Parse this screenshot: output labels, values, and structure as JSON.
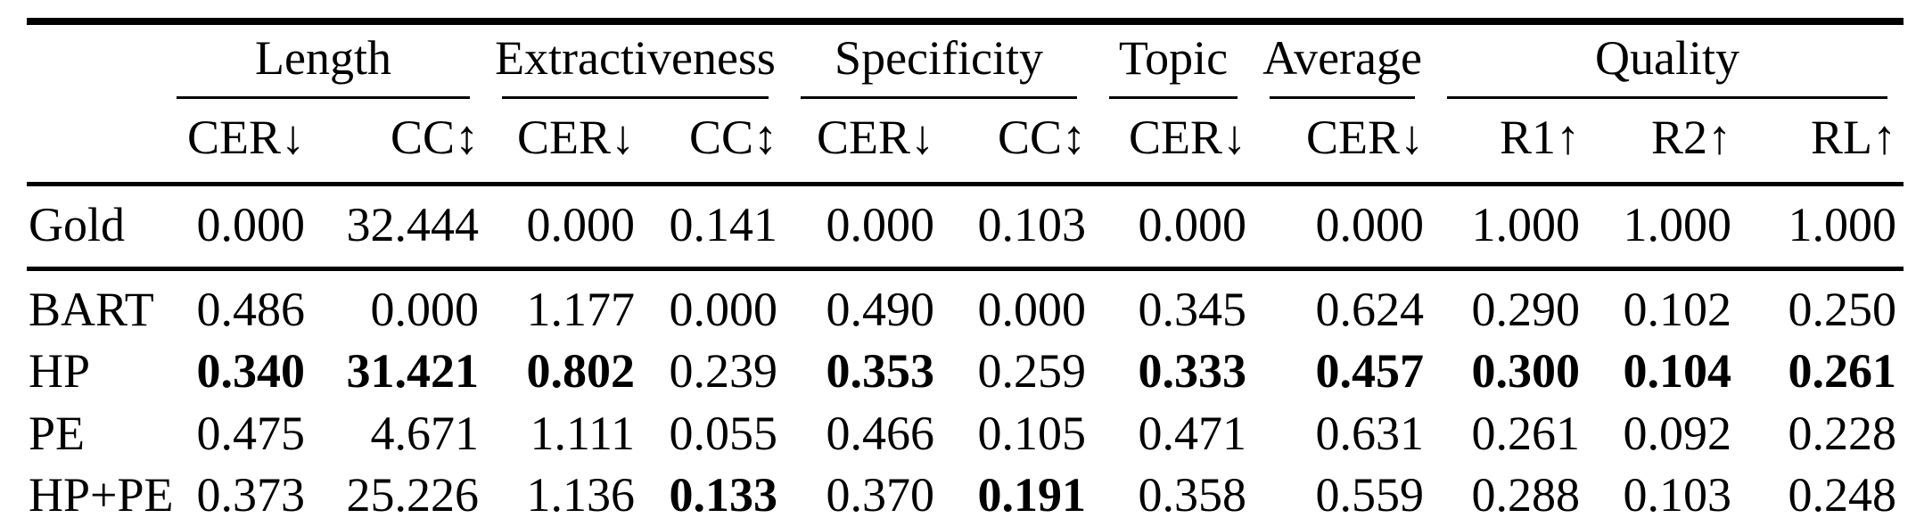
{
  "table": {
    "groups": [
      {
        "label": "Length",
        "cols": 2
      },
      {
        "label": "Extractiveness",
        "cols": 2
      },
      {
        "label": "Specificity",
        "cols": 2
      },
      {
        "label": "Topic",
        "cols": 1
      },
      {
        "label": "Average",
        "cols": 1
      },
      {
        "label": "Quality",
        "cols": 3
      }
    ],
    "subheaders": [
      "CER↓",
      "CC↕",
      "CER↓",
      "CC↕",
      "CER↓",
      "CC↕",
      "CER↓",
      "CER↓",
      "R1↑",
      "R2↑",
      "RL↑"
    ],
    "sections": [
      {
        "rows": [
          {
            "label": "Gold",
            "values": [
              "0.000",
              "32.444",
              "0.000",
              "0.141",
              "0.000",
              "0.103",
              "0.000",
              "0.000",
              "1.000",
              "1.000",
              "1.000"
            ],
            "bold": [
              false,
              false,
              false,
              false,
              false,
              false,
              false,
              false,
              false,
              false,
              false
            ]
          }
        ]
      },
      {
        "rows": [
          {
            "label": "BART",
            "values": [
              "0.486",
              "0.000",
              "1.177",
              "0.000",
              "0.490",
              "0.000",
              "0.345",
              "0.624",
              "0.290",
              "0.102",
              "0.250"
            ],
            "bold": [
              false,
              false,
              false,
              false,
              false,
              false,
              false,
              false,
              false,
              false,
              false
            ]
          },
          {
            "label": "HP",
            "values": [
              "0.340",
              "31.421",
              "0.802",
              "0.239",
              "0.353",
              "0.259",
              "0.333",
              "0.457",
              "0.300",
              "0.104",
              "0.261"
            ],
            "bold": [
              true,
              true,
              true,
              false,
              true,
              false,
              true,
              true,
              true,
              true,
              true
            ]
          },
          {
            "label": "PE",
            "values": [
              "0.475",
              "4.671",
              "1.111",
              "0.055",
              "0.466",
              "0.105",
              "0.471",
              "0.631",
              "0.261",
              "0.092",
              "0.228"
            ],
            "bold": [
              false,
              false,
              false,
              false,
              false,
              false,
              false,
              false,
              false,
              false,
              false
            ]
          },
          {
            "label": "HP+PE",
            "values": [
              "0.373",
              "25.226",
              "1.136",
              "0.133",
              "0.370",
              "0.191",
              "0.358",
              "0.559",
              "0.288",
              "0.103",
              "0.248"
            ],
            "bold": [
              false,
              false,
              false,
              true,
              false,
              true,
              false,
              false,
              false,
              false,
              false
            ]
          }
        ]
      }
    ]
  },
  "chart_data": {
    "type": "table",
    "column_groups": [
      "Length",
      "Length",
      "Extractiveness",
      "Extractiveness",
      "Specificity",
      "Specificity",
      "Topic",
      "Average",
      "Quality",
      "Quality",
      "Quality"
    ],
    "columns": [
      "CER↓",
      "CC↕",
      "CER↓",
      "CC↕",
      "CER↓",
      "CC↕",
      "CER↓",
      "CER↓",
      "R1↑",
      "R2↑",
      "RL↑"
    ],
    "rows": [
      {
        "name": "Gold",
        "values": [
          0.0,
          32.444,
          0.0,
          0.141,
          0.0,
          0.103,
          0.0,
          0.0,
          1.0,
          1.0,
          1.0
        ]
      },
      {
        "name": "BART",
        "values": [
          0.486,
          0.0,
          1.177,
          0.0,
          0.49,
          0.0,
          0.345,
          0.624,
          0.29,
          0.102,
          0.25
        ]
      },
      {
        "name": "HP",
        "values": [
          0.34,
          31.421,
          0.802,
          0.239,
          0.353,
          0.259,
          0.333,
          0.457,
          0.3,
          0.104,
          0.261
        ]
      },
      {
        "name": "PE",
        "values": [
          0.475,
          4.671,
          1.111,
          0.055,
          0.466,
          0.105,
          0.471,
          0.631,
          0.261,
          0.092,
          0.228
        ]
      },
      {
        "name": "HP+PE",
        "values": [
          0.373,
          25.226,
          1.136,
          0.133,
          0.37,
          0.191,
          0.358,
          0.559,
          0.288,
          0.103,
          0.248
        ]
      }
    ]
  },
  "colors": {
    "text": "#000000",
    "rule": "#000000",
    "background": "#ffffff"
  }
}
